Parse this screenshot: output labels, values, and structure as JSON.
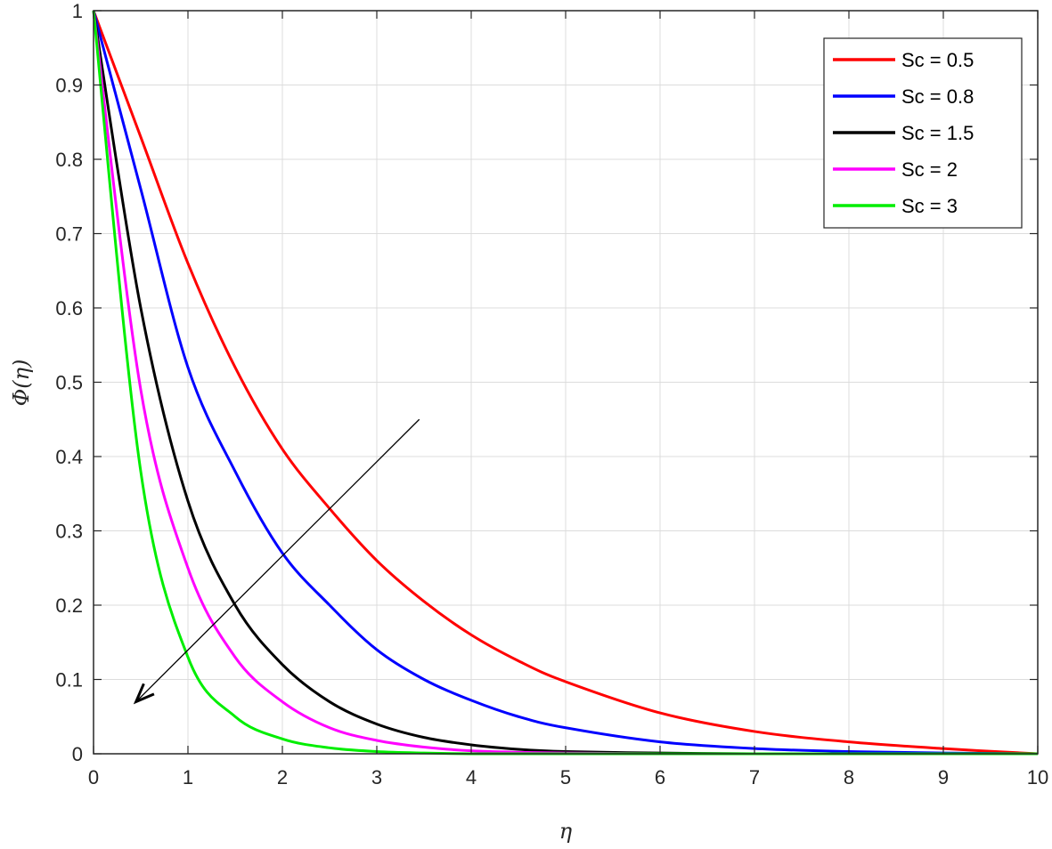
{
  "chart_data": {
    "type": "line",
    "xlabel": "η",
    "ylabel": "Φ(η)",
    "xlim": [
      0,
      10
    ],
    "ylim": [
      0,
      1
    ],
    "x_ticks": [
      "0",
      "1",
      "2",
      "3",
      "4",
      "5",
      "6",
      "7",
      "8",
      "9",
      "10"
    ],
    "y_ticks": [
      "0",
      "0.1",
      "0.2",
      "0.3",
      "0.4",
      "0.5",
      "0.6",
      "0.7",
      "0.8",
      "0.9",
      "1"
    ],
    "grid": true,
    "legend_position": "top-right",
    "x": [
      0,
      0.5,
      1,
      1.5,
      2,
      2.5,
      3,
      3.5,
      4,
      4.5,
      5,
      6,
      7,
      8,
      9,
      10
    ],
    "series": [
      {
        "name": "Sc = 0.5",
        "color": "#ff0000",
        "values": [
          1,
          0.83,
          0.66,
          0.52,
          0.41,
          0.33,
          0.26,
          0.205,
          0.16,
          0.125,
          0.097,
          0.055,
          0.03,
          0.016,
          0.007,
          0
        ]
      },
      {
        "name": "Sc = 0.8",
        "color": "#0000ff",
        "values": [
          1,
          0.76,
          0.52,
          0.38,
          0.27,
          0.2,
          0.14,
          0.1,
          0.072,
          0.05,
          0.035,
          0.016,
          0.007,
          0.003,
          0.001,
          0
        ]
      },
      {
        "name": "Sc = 1.5",
        "color": "#000000",
        "values": [
          1,
          0.6,
          0.34,
          0.2,
          0.12,
          0.07,
          0.04,
          0.022,
          0.012,
          0.006,
          0.003,
          0.001,
          0,
          0,
          0,
          0
        ]
      },
      {
        "name": "Sc = 2",
        "color": "#ff00ff",
        "values": [
          1,
          0.49,
          0.25,
          0.13,
          0.07,
          0.035,
          0.018,
          0.009,
          0.004,
          0.002,
          0.001,
          0,
          0,
          0,
          0,
          0
        ]
      },
      {
        "name": "Sc = 3",
        "color": "#00ee00",
        "values": [
          1,
          0.38,
          0.13,
          0.05,
          0.02,
          0.008,
          0.003,
          0.001,
          0,
          0,
          0,
          0,
          0,
          0,
          0,
          0
        ]
      }
    ],
    "annotation_arrow": {
      "from": [
        3.45,
        0.45
      ],
      "to": [
        0.45,
        0.07
      ]
    }
  }
}
